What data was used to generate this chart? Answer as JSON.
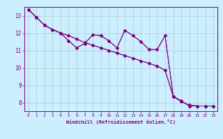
{
  "xlabel": "Windchill (Refroidissement éolien,°C)",
  "background_color": "#cceeff",
  "line_color": "#800080",
  "grid_color": "#aacccc",
  "axis_color": "#800080",
  "tick_color": "#800080",
  "label_color": "#800080",
  "xlim": [
    -0.5,
    23.5
  ],
  "ylim": [
    7.5,
    13.5
  ],
  "yticks": [
    8,
    9,
    10,
    11,
    12,
    13
  ],
  "xticks": [
    0,
    1,
    2,
    3,
    4,
    5,
    6,
    7,
    8,
    9,
    10,
    11,
    12,
    13,
    14,
    15,
    16,
    17,
    18,
    19,
    20,
    21,
    22,
    23
  ],
  "lines": [
    [
      13.35,
      12.9,
      12.45,
      12.2,
      12.0,
      11.85,
      11.65,
      11.45,
      11.3,
      11.15,
      11.0,
      10.85,
      10.7,
      10.55,
      10.4,
      10.25,
      10.1,
      9.85,
      8.35,
      8.05,
      7.85,
      7.8,
      7.8,
      7.8
    ],
    [
      13.35,
      12.9,
      12.45,
      12.2,
      12.0,
      11.55,
      11.15,
      11.4,
      11.9,
      11.85,
      11.55,
      11.15,
      12.15,
      11.85,
      11.5,
      11.05,
      11.05,
      11.85,
      8.35,
      8.1,
      7.8,
      7.8,
      7.8,
      7.8
    ],
    [
      13.35,
      12.9,
      12.45,
      12.2,
      12.0,
      11.85,
      11.65,
      11.45,
      11.3,
      11.15,
      11.0,
      10.85,
      10.7,
      10.55,
      10.4,
      10.25,
      10.1,
      9.85,
      8.35,
      8.05,
      7.85,
      7.8,
      7.8,
      7.8
    ],
    [
      13.35,
      12.9,
      12.45,
      12.2,
      12.0,
      11.55,
      11.15,
      11.4,
      11.9,
      11.85,
      11.55,
      11.15,
      12.15,
      11.85,
      11.5,
      11.05,
      11.05,
      11.85,
      8.35,
      8.1,
      7.8,
      7.8,
      7.8,
      7.8
    ]
  ]
}
